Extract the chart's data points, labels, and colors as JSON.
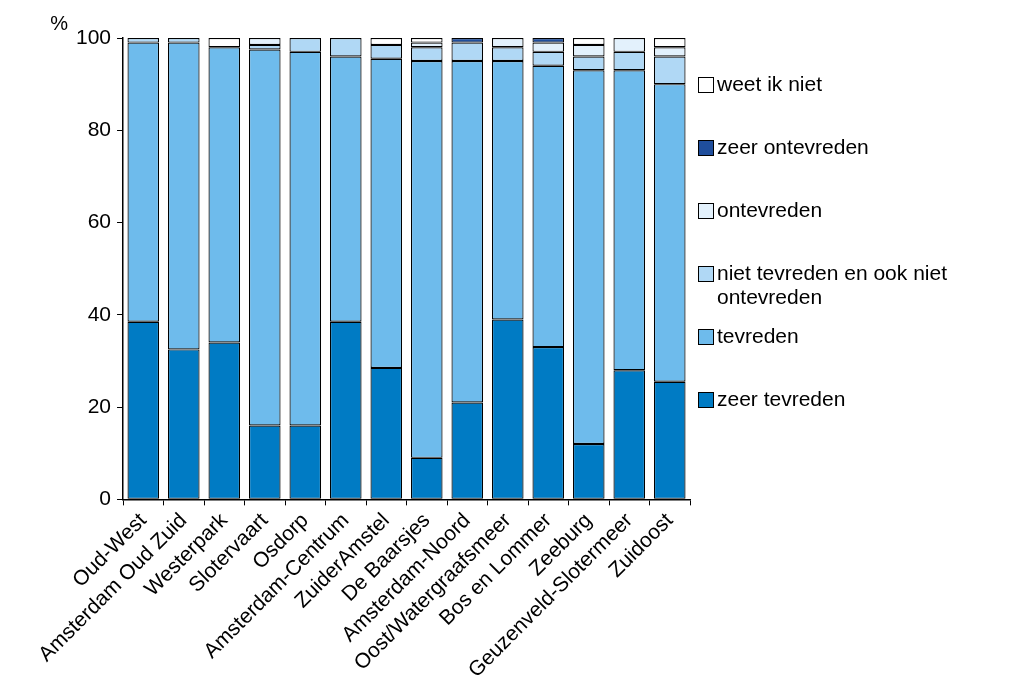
{
  "chart_data": {
    "type": "bar",
    "stacked": true,
    "ylabel": "%",
    "categories": [
      "Oud-West",
      "Amsterdam Oud Zuid",
      "Westerpark",
      "Slotervaart",
      "Osdorp",
      "Amsterdam-Centrum",
      "ZuiderAmstel",
      "De Baarsjes",
      "Amsterdam-Noord",
      "Oost/Watergraafsmeer",
      "Bos en Lommer",
      "Zeeburg",
      "Geuzenveld-Slotermeer",
      "Zuidoost"
    ],
    "series": [
      {
        "name": "zeer tevreden",
        "color": "#007bc4",
        "values": [
          38.5,
          32.5,
          34,
          16,
          16,
          38.5,
          28.5,
          9,
          21,
          39,
          33,
          12,
          28,
          25.5
        ]
      },
      {
        "name": "tevreden",
        "color": "#6ebbec",
        "values": [
          60.5,
          66.5,
          64,
          81.5,
          81,
          57.5,
          67,
          86,
          74,
          56,
          61,
          81,
          65,
          64.5
        ]
      },
      {
        "name": "niet tevreden en ook niet ontevreden",
        "color": "#b0d8f5",
        "values": [
          1,
          1,
          0,
          1,
          3,
          4,
          3,
          3,
          4,
          3,
          3,
          3,
          4,
          6
        ]
      },
      {
        "name": "ontevreden",
        "color": "#e3f1fc",
        "values": [
          0,
          0,
          0,
          1.5,
          0,
          0,
          0,
          1,
          0,
          2,
          2,
          2.5,
          3,
          2
        ]
      },
      {
        "name": "zeer ontevreden",
        "color": "#1f4e9c",
        "values": [
          0,
          0,
          0,
          0,
          0,
          0,
          0,
          0,
          1,
          0,
          1,
          0,
          0,
          0
        ]
      },
      {
        "name": "weet ik niet",
        "color": "#ffffff",
        "values": [
          0,
          0,
          2,
          0,
          0,
          0,
          1.5,
          1,
          0,
          0,
          0,
          1.5,
          0,
          2
        ]
      }
    ],
    "ylim": [
      0,
      100
    ],
    "yticks": [
      0,
      20,
      40,
      60,
      80,
      100
    ],
    "grid": false,
    "legend": "right"
  }
}
